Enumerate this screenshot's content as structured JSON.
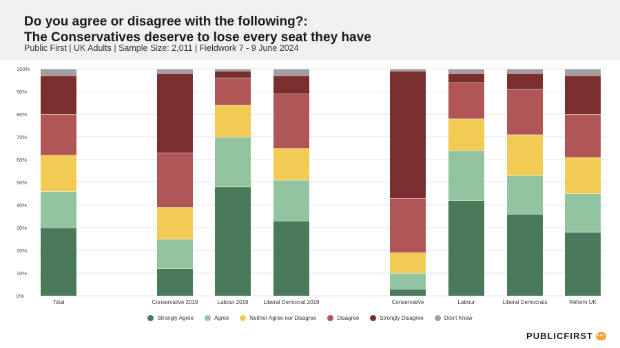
{
  "header": {
    "title_line1": "Do you agree or disagree with the following?:",
    "title_line2": "The Conservatives deserve to lose every seat they have",
    "subtitle": "Public First | UK Adults | Sample Size: 2,011 | Fieldwork 7 - 9 June 2024"
  },
  "logo": {
    "text": "PUBLICFIRST",
    "icon": "speech-bubble-icon"
  },
  "chart_data": {
    "type": "bar",
    "stacked": true,
    "ylim": [
      0,
      100
    ],
    "yticks": [
      "0%",
      "10%",
      "20%",
      "30%",
      "40%",
      "50%",
      "60%",
      "70%",
      "80%",
      "90%",
      "100%"
    ],
    "grid": true,
    "legend_position": "bottom",
    "categories": [
      "Total",
      "Conservative 2019",
      "Labour 2019",
      "Liberal Democrat 2019",
      "Conservative",
      "Labour",
      "Liberal Democrats",
      "Reform UK"
    ],
    "series": [
      {
        "name": "Strongly Agree",
        "color": "#4a7a5a",
        "values": [
          30,
          12,
          48,
          33,
          3,
          42,
          36,
          28
        ]
      },
      {
        "name": "Agree",
        "color": "#93c4a0",
        "values": [
          16,
          13,
          22,
          18,
          7,
          22,
          17,
          17
        ]
      },
      {
        "name": "Neither Agree nor Disagree",
        "color": "#f2cb55",
        "values": [
          16,
          14,
          14,
          14,
          9,
          14,
          18,
          16
        ]
      },
      {
        "name": "Disagree",
        "color": "#b15656",
        "values": [
          18,
          24,
          12,
          24,
          24,
          16,
          20,
          19
        ]
      },
      {
        "name": "Strongly Disagree",
        "color": "#7a2e2e",
        "values": [
          17,
          35,
          3,
          8,
          56,
          4,
          7,
          17
        ]
      },
      {
        "name": "Don't Know",
        "color": "#a0a0a0",
        "values": [
          3,
          2,
          1,
          3,
          1,
          2,
          2,
          3
        ]
      }
    ]
  }
}
